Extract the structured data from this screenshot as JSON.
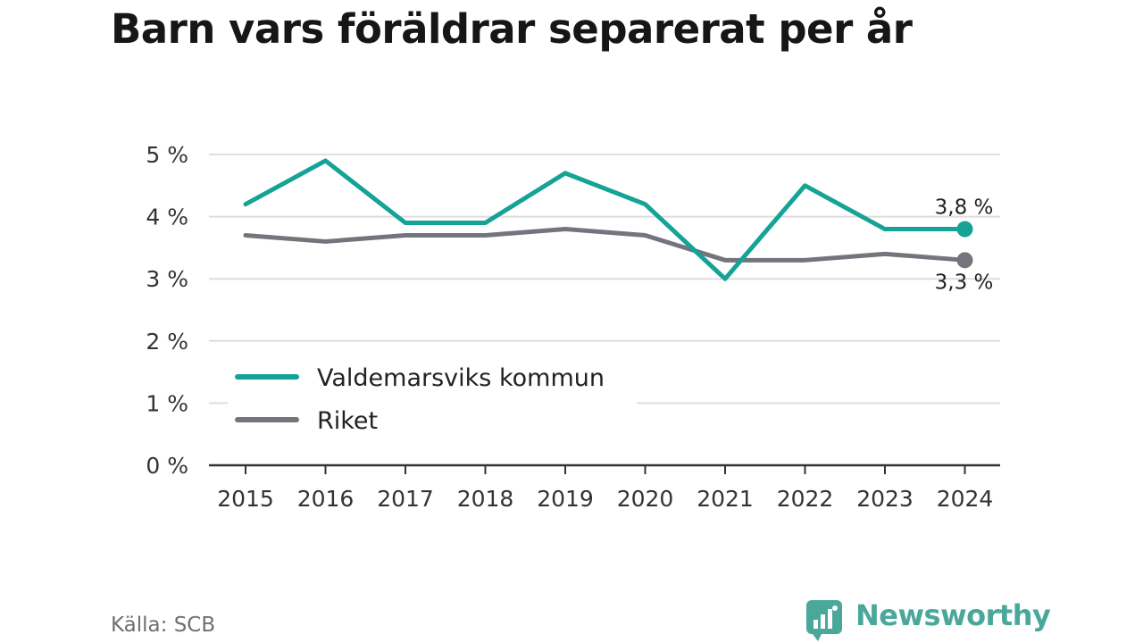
{
  "chart_data": {
    "type": "line",
    "title": "Barn vars föräldrar separerat per år",
    "categories": [
      "2015",
      "2016",
      "2017",
      "2018",
      "2019",
      "2020",
      "2021",
      "2022",
      "2023",
      "2024"
    ],
    "y_tick_labels": [
      "0 %",
      "1 %",
      "2 %",
      "3 %",
      "4 %",
      "5 %"
    ],
    "ylim": [
      0,
      5
    ],
    "grid": true,
    "legend_position": "bottom-left",
    "series": [
      {
        "name": "Valdemarsviks kommun",
        "color": "#14a396",
        "values": [
          4.2,
          4.9,
          3.9,
          3.9,
          4.7,
          4.2,
          3.0,
          4.5,
          3.8,
          3.8
        ],
        "end_label": "3,8 %"
      },
      {
        "name": "Riket",
        "color": "#74747c",
        "values": [
          3.7,
          3.6,
          3.7,
          3.7,
          3.8,
          3.7,
          3.3,
          3.3,
          3.4,
          3.3
        ],
        "end_label": "3,3 %"
      }
    ],
    "source": "Källa: SCB"
  },
  "brand": {
    "name": "Newsworthy",
    "color": "#4aa89b",
    "icon": "bar-chart-badge-icon"
  }
}
